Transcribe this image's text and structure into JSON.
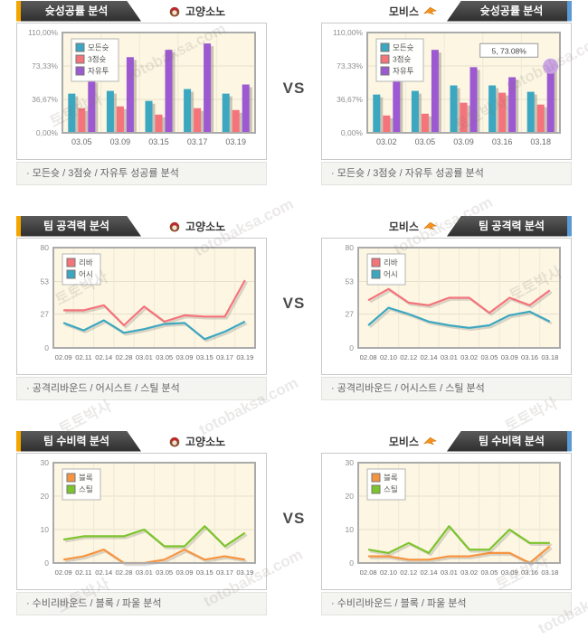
{
  "vs_label": "VS",
  "teams": {
    "left": {
      "name": "고양소노"
    },
    "right": {
      "name": "모비스"
    }
  },
  "rows": [
    {
      "title": "슛성공률 분석",
      "caption": "· 모든슛 / 3점슛 / 자유투 성공률 분석"
    },
    {
      "title": "팀 공격력 분석",
      "caption": "· 공격리바운드 / 어시스트 / 스틸 분석"
    },
    {
      "title": "팀 수비력 분석",
      "caption": "· 수비리바운드 / 블록 / 파울 분석"
    }
  ],
  "watermark": {
    "line1": "토토박사",
    "line2": "totobaksa.com"
  },
  "theme": {
    "accent_left": "#F5A500",
    "accent_right": "#5B9BD5",
    "teal": "#3BA7C0",
    "pink": "#F5737B",
    "purple": "#9C59D1",
    "orange": "#F79440",
    "green": "#7CC42C",
    "plot_bg": "#FCF6E3"
  },
  "chart_data": [
    {
      "type": "bar",
      "team": "고양소노",
      "section": "슛성공률 분석",
      "categories": [
        "03.05",
        "03.09",
        "03.15",
        "03.17",
        "03.19"
      ],
      "series": [
        {
          "name": "모든슛",
          "color": "#3BA7C0",
          "values": [
            43,
            46,
            35,
            48,
            43
          ]
        },
        {
          "name": "3점슛",
          "color": "#F5737B",
          "values": [
            27,
            29,
            20,
            27,
            25
          ]
        },
        {
          "name": "자유투",
          "color": "#9C59D1",
          "values": [
            58,
            83,
            91,
            98,
            53
          ]
        }
      ],
      "ylim": [
        0,
        110
      ],
      "yticks": [
        "0,00%",
        "36,67%",
        "73,33%",
        "110,00%"
      ],
      "ytick_values": [
        0,
        36.67,
        73.33,
        110
      ],
      "legend_position": "top-left",
      "grid": true
    },
    {
      "type": "bar",
      "team": "모비스",
      "section": "슛성공률 분석",
      "categories": [
        "03.02",
        "03.05",
        "03.09",
        "03.16",
        "03.18"
      ],
      "series": [
        {
          "name": "모든슛",
          "color": "#3BA7C0",
          "values": [
            42,
            46,
            52,
            52,
            45
          ]
        },
        {
          "name": "3점슛",
          "color": "#F5737B",
          "values": [
            19,
            21,
            33,
            44,
            31
          ]
        },
        {
          "name": "자유투",
          "color": "#9C59D1",
          "values": [
            59,
            91,
            72,
            61,
            73.08
          ]
        }
      ],
      "ylim": [
        0,
        110
      ],
      "yticks": [
        "0,00%",
        "36,67%",
        "73,33%",
        "110,00%"
      ],
      "ytick_values": [
        0,
        36.67,
        73.33,
        110
      ],
      "legend_position": "top-left",
      "grid": true,
      "tooltip": "5, 73.08%",
      "highlight": {
        "series_index": 2,
        "category_index": 4
      }
    },
    {
      "type": "line",
      "team": "고양소노",
      "section": "팀 공격력 분석",
      "categories": [
        "02.09",
        "02.11",
        "02.14",
        "02.28",
        "03.01",
        "03.05",
        "03.09",
        "03.15",
        "03.17",
        "03.19"
      ],
      "series": [
        {
          "name": "리바",
          "color": "#F5737B",
          "values": [
            30,
            30,
            34,
            18,
            33,
            21,
            26,
            25,
            25,
            54
          ]
        },
        {
          "name": "어시",
          "color": "#3BA7C0",
          "values": [
            20,
            14,
            22,
            12,
            15,
            19,
            20,
            7,
            13,
            21
          ]
        }
      ],
      "ylim": [
        0,
        80
      ],
      "yticks": [
        "0",
        "27",
        "53",
        "80"
      ],
      "ytick_values": [
        0,
        27,
        53,
        80
      ],
      "legend_position": "top-left",
      "grid": true
    },
    {
      "type": "line",
      "team": "모비스",
      "section": "팀 공격력 분석",
      "categories": [
        "02.08",
        "02.10",
        "02.12",
        "02.14",
        "03.01",
        "03.02",
        "03.05",
        "03.09",
        "03.16",
        "03.18"
      ],
      "series": [
        {
          "name": "리바",
          "color": "#F5737B",
          "values": [
            38,
            47,
            36,
            34,
            40,
            40,
            28,
            40,
            34,
            46
          ]
        },
        {
          "name": "어시",
          "color": "#3BA7C0",
          "values": [
            18,
            32,
            27,
            21,
            18,
            16,
            18,
            26,
            29,
            21
          ]
        }
      ],
      "ylim": [
        0,
        80
      ],
      "yticks": [
        "0",
        "27",
        "53",
        "80"
      ],
      "ytick_values": [
        0,
        27,
        53,
        80
      ],
      "legend_position": "top-left",
      "grid": true
    },
    {
      "type": "line",
      "team": "고양소노",
      "section": "팀 수비력 분석",
      "categories": [
        "02.09",
        "02.11",
        "02.14",
        "02.28",
        "03.01",
        "03.05",
        "03.09",
        "03.15",
        "03.17",
        "03.19"
      ],
      "series": [
        {
          "name": "블록",
          "color": "#F79440",
          "values": [
            1,
            2,
            4,
            0,
            0,
            1,
            4,
            1,
            2,
            1
          ]
        },
        {
          "name": "스틸",
          "color": "#7CC42C",
          "values": [
            7,
            8,
            8,
            8,
            10,
            5,
            5,
            11,
            5,
            9
          ]
        }
      ],
      "ylim": [
        0,
        30
      ],
      "yticks": [
        "0",
        "10",
        "20",
        "30"
      ],
      "ytick_values": [
        0,
        10,
        20,
        30
      ],
      "legend_position": "top-left",
      "grid": true
    },
    {
      "type": "line",
      "team": "모비스",
      "section": "팀 수비력 분석",
      "categories": [
        "02.08",
        "02.10",
        "02.12",
        "02.14",
        "03.01",
        "03.02",
        "03.05",
        "03.09",
        "03.16",
        "03.18"
      ],
      "series": [
        {
          "name": "블록",
          "color": "#F79440",
          "values": [
            2,
            2,
            1,
            1,
            2,
            2,
            3,
            3,
            0,
            5
          ]
        },
        {
          "name": "스틸",
          "color": "#7CC42C",
          "values": [
            4,
            3,
            6,
            3,
            11,
            4,
            4,
            10,
            6,
            6
          ]
        }
      ],
      "ylim": [
        0,
        30
      ],
      "yticks": [
        "0",
        "10",
        "20",
        "30"
      ],
      "ytick_values": [
        0,
        10,
        20,
        30
      ],
      "legend_position": "top-left",
      "grid": true
    }
  ]
}
